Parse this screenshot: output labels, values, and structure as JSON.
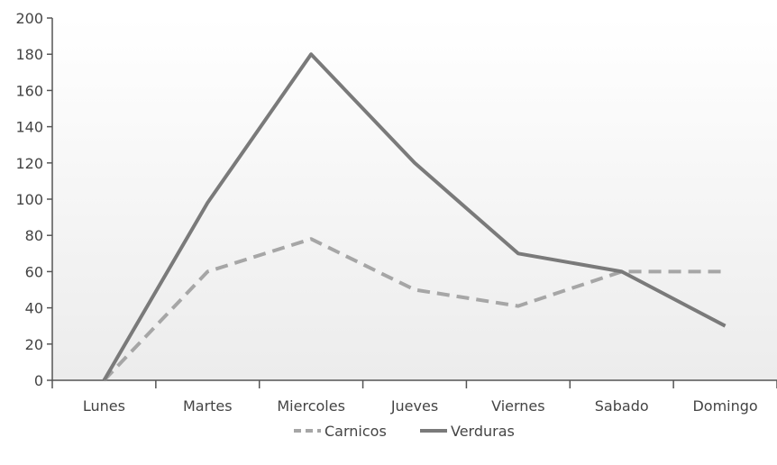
{
  "chart_data": {
    "type": "line",
    "title": "",
    "xlabel": "",
    "ylabel": "",
    "categories": [
      "Lunes",
      "Martes",
      "Miercoles",
      "Jueves",
      "Viernes",
      "Sabado",
      "Domingo"
    ],
    "ylim": [
      0,
      200
    ],
    "yticks": [
      0,
      20,
      40,
      60,
      80,
      100,
      120,
      140,
      160,
      180,
      200
    ],
    "grid": false,
    "legend_position": "bottom-center",
    "series": [
      {
        "name": "Carnicos",
        "values": [
          0,
          60,
          78,
          50,
          41,
          60,
          60
        ],
        "color": "#a6a6a6",
        "dashed": true
      },
      {
        "name": "Verduras",
        "values": [
          0,
          98,
          180,
          120,
          70,
          60,
          30
        ],
        "color": "#7a7a7a",
        "dashed": false
      }
    ]
  }
}
